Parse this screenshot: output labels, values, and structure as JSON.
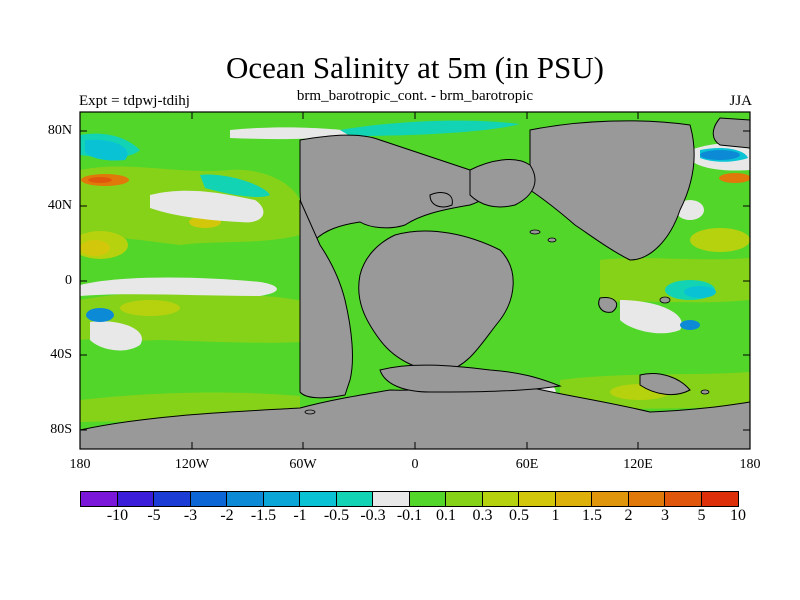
{
  "title": "Ocean Salinity at 5m (in PSU)",
  "subtitle": "brm_barotropic_cont. - brm_barotropic",
  "experiment": "Expt = tdpwj-tdihj",
  "season": "JJA",
  "map": {
    "land_color": "#999999",
    "lat_labels": [
      "80N",
      "40N",
      "0",
      "40S",
      "80S"
    ],
    "lon_labels": [
      "180",
      "120W",
      "60W",
      "0",
      "60E",
      "120E",
      "180"
    ]
  },
  "colorbar": {
    "colors": [
      "#7a17d9",
      "#3b1ed9",
      "#1b3dd6",
      "#0d66d6",
      "#0c8ad6",
      "#0aa6d8",
      "#09c3d5",
      "#12d4b4",
      "#e8e8e8",
      "#52d62a",
      "#86d219",
      "#b6d10e",
      "#d3c70b",
      "#ddb00a",
      "#df960a",
      "#e0790a",
      "#e0570b",
      "#dd2f0a"
    ],
    "labels": [
      "-10",
      "-5",
      "-3",
      "-2",
      "-1.5",
      "-1",
      "-0.5",
      "-0.3",
      "-0.1",
      "0.1",
      "0.3",
      "0.5",
      "1",
      "1.5",
      "2",
      "3",
      "5",
      "10"
    ]
  }
}
